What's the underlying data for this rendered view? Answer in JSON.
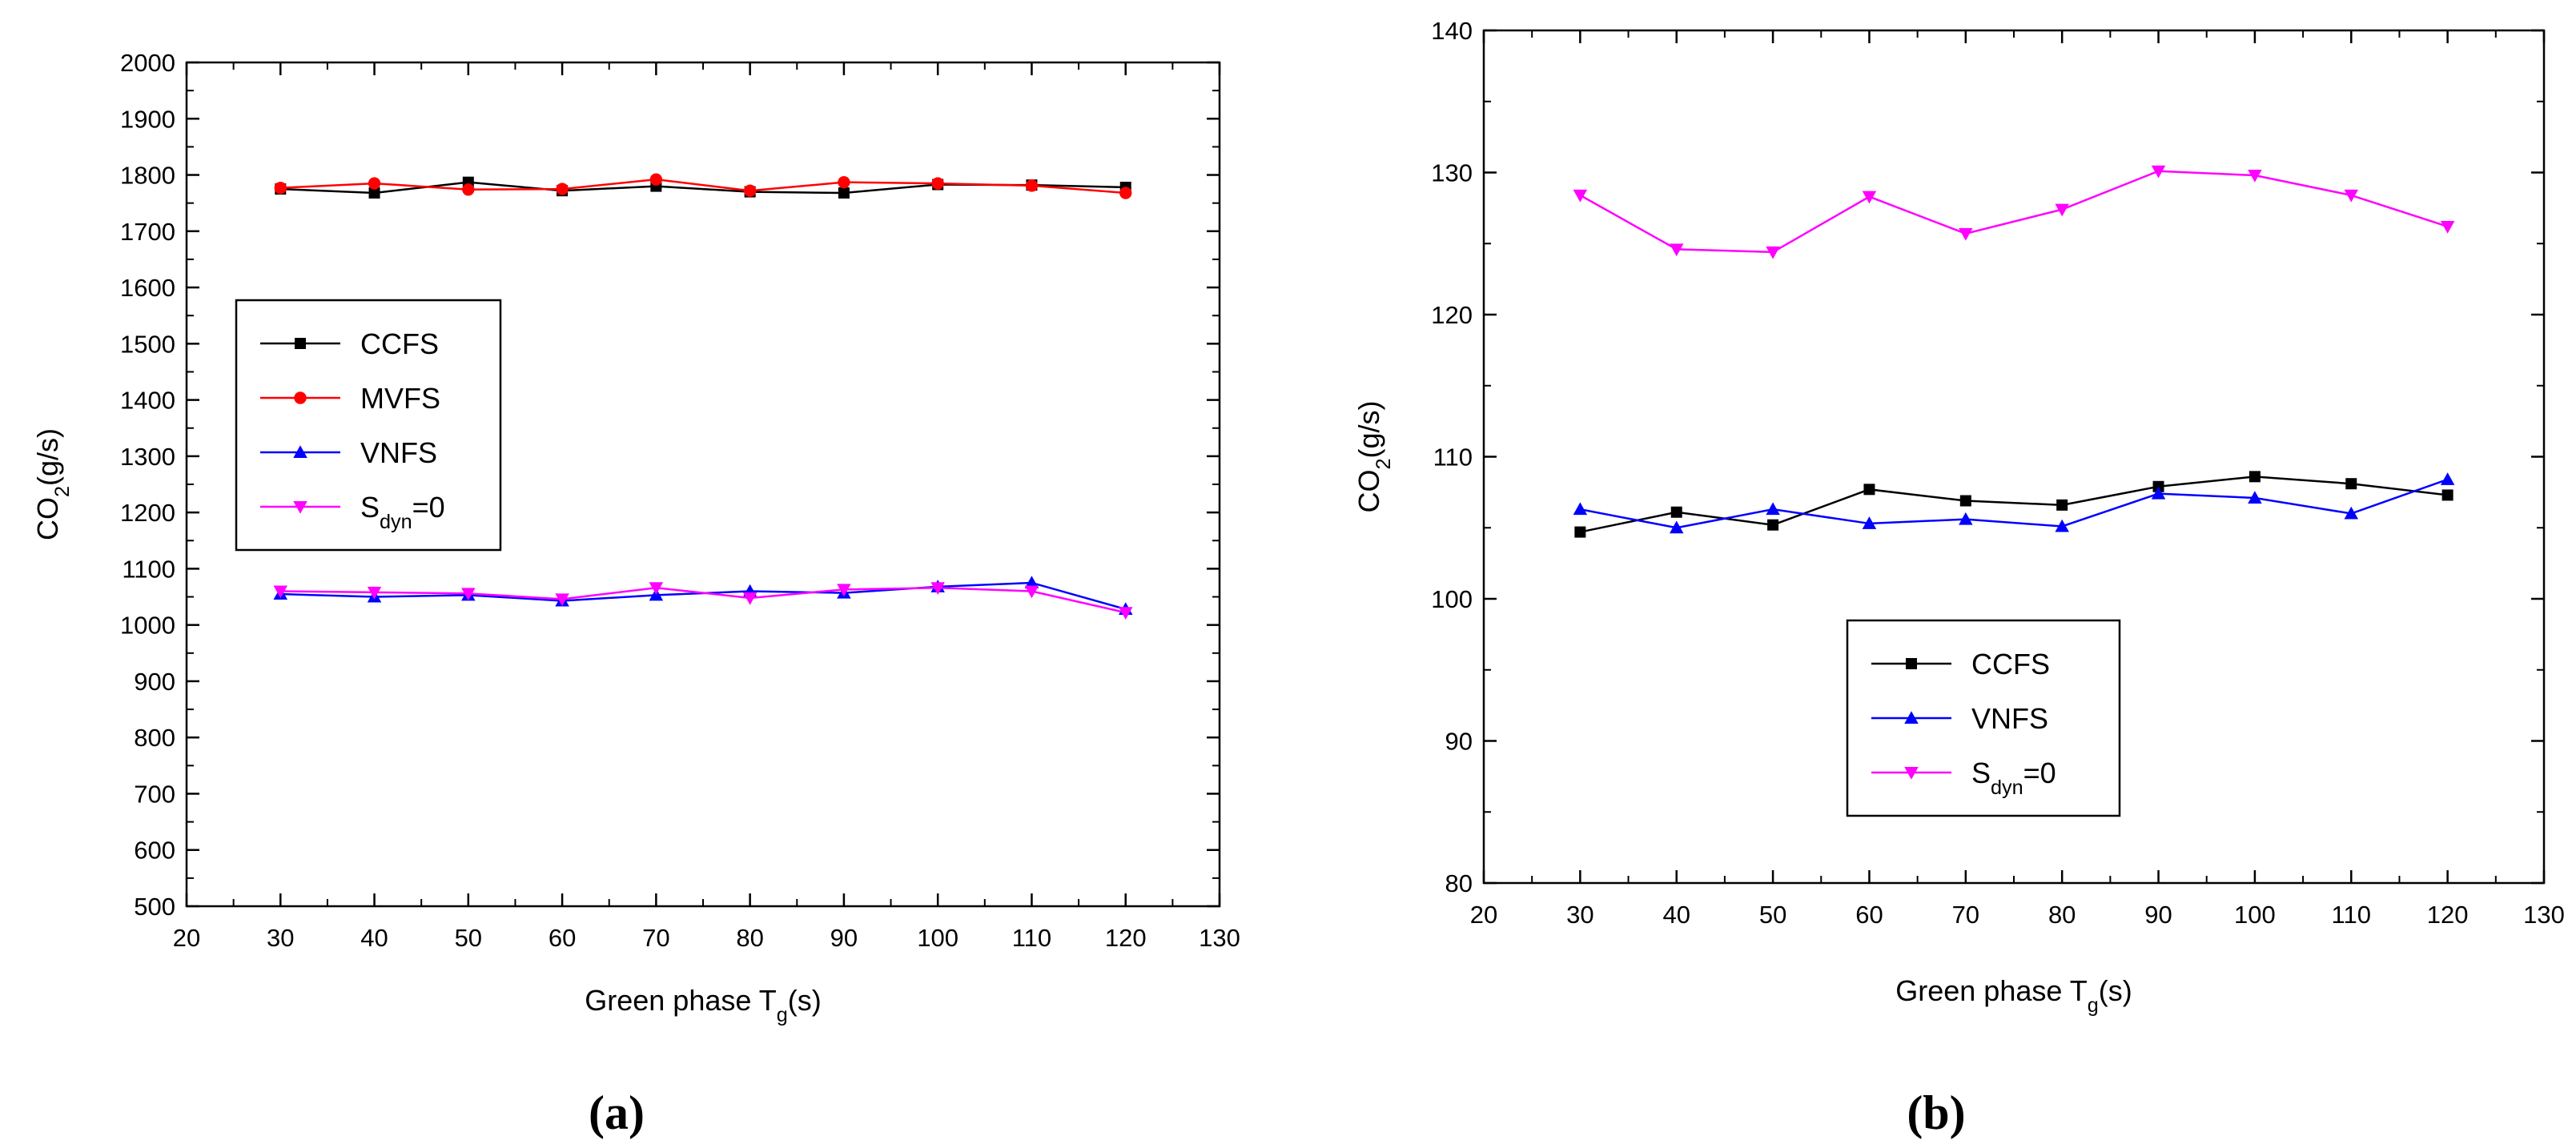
{
  "chart_data": [
    {
      "type": "line",
      "panel_label": "(a)",
      "xlabel": "Green phase T",
      "xlabel_sub": "g",
      "xlabel_suffix": "(s)",
      "ylabel": "CO",
      "ylabel_sub": "2",
      "ylabel_suffix": "(g/s)",
      "xlim": [
        20,
        130
      ],
      "ylim": [
        500,
        2000
      ],
      "xticks": [
        20,
        30,
        40,
        50,
        60,
        70,
        80,
        90,
        100,
        110,
        120,
        130
      ],
      "yticks": [
        500,
        600,
        700,
        800,
        900,
        1000,
        1100,
        1200,
        1300,
        1400,
        1500,
        1600,
        1700,
        1800,
        1900,
        2000
      ],
      "x": [
        30,
        40,
        50,
        60,
        70,
        80,
        90,
        100,
        110,
        120
      ],
      "legend_position": "middle-left",
      "series": [
        {
          "name": "CCFS",
          "color": "#000000",
          "marker": "square",
          "values": [
            1775,
            1768,
            1787,
            1772,
            1780,
            1770,
            1768,
            1783,
            1782,
            1778
          ]
        },
        {
          "name": "MVFS",
          "color": "#ff0000",
          "marker": "circle",
          "values": [
            1777,
            1785,
            1774,
            1775,
            1792,
            1772,
            1787,
            1785,
            1781,
            1768
          ]
        },
        {
          "name": "VNFS",
          "color": "#0000ff",
          "marker": "triangle-up",
          "values": [
            1055,
            1050,
            1053,
            1043,
            1053,
            1060,
            1057,
            1068,
            1075,
            1028
          ]
        },
        {
          "name": "S",
          "name_sub": "dyn",
          "name_suffix": "=0",
          "color": "#ff00ff",
          "marker": "triangle-down",
          "values": [
            1060,
            1058,
            1056,
            1046,
            1066,
            1048,
            1063,
            1066,
            1060,
            1022
          ]
        }
      ]
    },
    {
      "type": "line",
      "panel_label": "(b)",
      "xlabel": "Green phase T",
      "xlabel_sub": "g",
      "xlabel_suffix": "(s)",
      "ylabel": "CO",
      "ylabel_sub": "2",
      "ylabel_suffix": "(g/s)",
      "xlim": [
        20,
        130
      ],
      "ylim": [
        80,
        140
      ],
      "xticks": [
        20,
        30,
        40,
        50,
        60,
        70,
        80,
        90,
        100,
        110,
        120,
        130
      ],
      "yticks": [
        80,
        90,
        100,
        110,
        120,
        130,
        140
      ],
      "x": [
        30,
        40,
        50,
        60,
        70,
        80,
        90,
        100,
        110,
        120
      ],
      "legend_position": "bottom-center",
      "series": [
        {
          "name": "CCFS",
          "color": "#000000",
          "marker": "square",
          "values": [
            104.7,
            106.1,
            105.2,
            107.7,
            106.9,
            106.6,
            107.9,
            108.6,
            108.1,
            107.3
          ]
        },
        {
          "name": "VNFS",
          "color": "#0000ff",
          "marker": "triangle-up",
          "values": [
            106.3,
            105.0,
            106.3,
            105.3,
            105.6,
            105.1,
            107.4,
            107.1,
            106.0,
            108.4
          ]
        },
        {
          "name": "S",
          "name_sub": "dyn",
          "name_suffix": "=0",
          "color": "#ff00ff",
          "marker": "triangle-down",
          "values": [
            128.4,
            124.6,
            124.4,
            128.3,
            125.7,
            127.4,
            130.1,
            129.8,
            128.4,
            126.2
          ]
        }
      ]
    }
  ]
}
